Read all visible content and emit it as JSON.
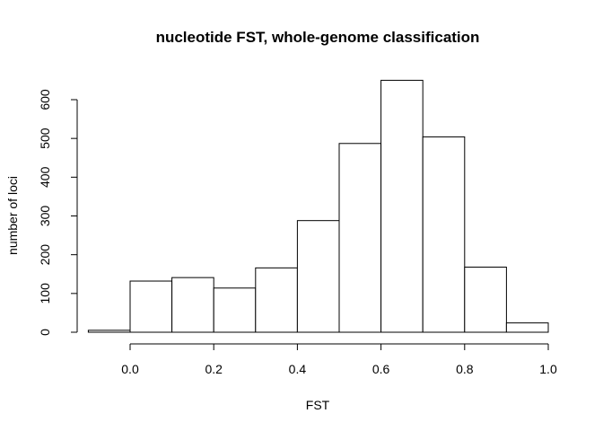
{
  "chart_data": {
    "type": "bar",
    "title": "nucleotide FST, whole-genome classification",
    "xlabel": "FST",
    "ylabel": "number of loci",
    "bins": [
      {
        "from": -0.1,
        "to": 0.0,
        "count": 5
      },
      {
        "from": 0.0,
        "to": 0.1,
        "count": 132
      },
      {
        "from": 0.1,
        "to": 0.2,
        "count": 141
      },
      {
        "from": 0.2,
        "to": 0.3,
        "count": 114
      },
      {
        "from": 0.3,
        "to": 0.4,
        "count": 166
      },
      {
        "from": 0.4,
        "to": 0.5,
        "count": 288
      },
      {
        "from": 0.5,
        "to": 0.6,
        "count": 487
      },
      {
        "from": 0.6,
        "to": 0.7,
        "count": 650
      },
      {
        "from": 0.7,
        "to": 0.8,
        "count": 504
      },
      {
        "from": 0.8,
        "to": 0.9,
        "count": 168
      },
      {
        "from": 0.9,
        "to": 1.0,
        "count": 24
      }
    ],
    "xticks": [
      "0.0",
      "0.2",
      "0.4",
      "0.6",
      "0.8",
      "1.0"
    ],
    "yticks": [
      "0",
      "100",
      "200",
      "300",
      "400",
      "500",
      "600"
    ],
    "xlim": [
      -0.1,
      1.0
    ],
    "ylim": [
      0,
      650
    ],
    "grid": false,
    "legend": "none",
    "bar_fill": "#ffffff",
    "bar_stroke": "#000000"
  }
}
